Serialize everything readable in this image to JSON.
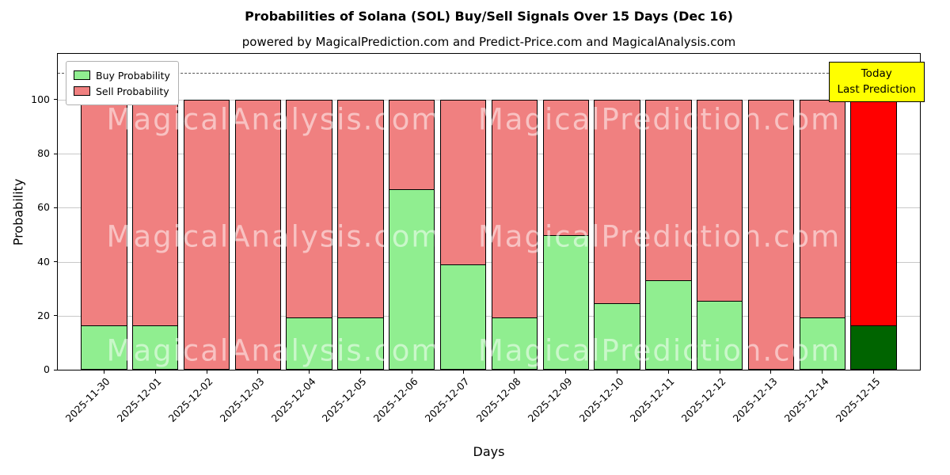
{
  "chart_data": {
    "type": "bar",
    "stacked": true,
    "title": "Probabilities of Solana (SOL) Buy/Sell Signals Over 15 Days (Dec 16)",
    "subtitle": "powered by MagicalPrediction.com and Predict-Price.com and MagicalAnalysis.com",
    "xlabel": "Days",
    "ylabel": "Probability",
    "ylim": [
      0,
      117
    ],
    "yticks": [
      0,
      20,
      40,
      60,
      80,
      100
    ],
    "grid": true,
    "dashed_line_y": 110,
    "legend_position": "upper-left",
    "categories": [
      "2025-11-30",
      "2025-12-01",
      "2025-12-02",
      "2025-12-03",
      "2025-12-04",
      "2025-12-05",
      "2025-12-06",
      "2025-12-07",
      "2025-12-08",
      "2025-12-09",
      "2025-12-10",
      "2025-12-11",
      "2025-12-12",
      "2025-12-13",
      "2025-12-14",
      "2025-12-15"
    ],
    "series": [
      {
        "name": "Buy Probability",
        "color": "#90EE90",
        "values": [
          16.5,
          16.5,
          0,
          0,
          19.5,
          19.5,
          67,
          39,
          19.5,
          50,
          24.5,
          33,
          25.5,
          0,
          19.5,
          16.5
        ]
      },
      {
        "name": "Sell Probability",
        "color": "#F08080",
        "values": [
          83.5,
          83.5,
          100,
          100,
          80.5,
          80.5,
          33,
          61,
          80.5,
          50,
          75.5,
          67,
          74.5,
          100,
          80.5,
          83.5
        ]
      }
    ],
    "bar_edge_color": "#000000",
    "today_bar": {
      "category": "2025-12-15",
      "index": 15,
      "buy_color": "#006400",
      "sell_color": "#FF0000"
    },
    "annotation": {
      "line1": "Today",
      "line2": "Last Prediction",
      "bg_color": "#FFFF00"
    },
    "watermarks": {
      "left_text": "MagicalAnalysis.com",
      "right_text": "MagicalPrediction.com"
    }
  }
}
